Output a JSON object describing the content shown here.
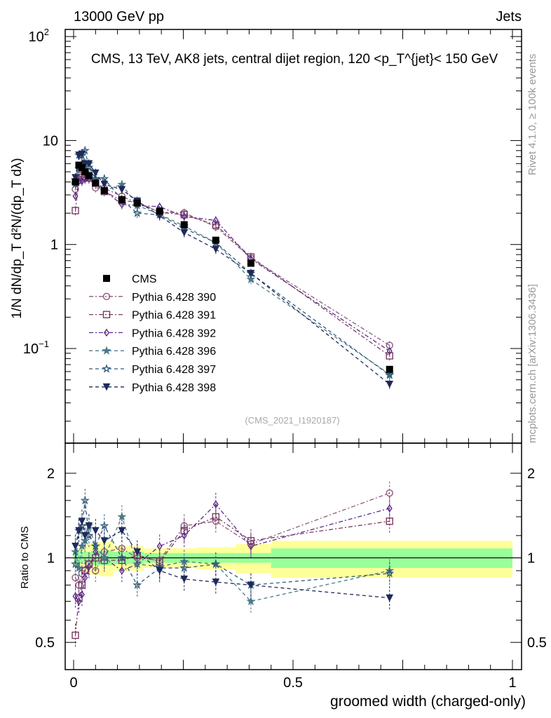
{
  "header": {
    "left": "13000 GeV pp",
    "right": "Jets"
  },
  "side": {
    "rivet": "Rivet 4.1.0, ≥ 100k events",
    "mcplots": "mcplots.cern.ch [arXiv:1306.3436]"
  },
  "watermark": "(CMS_2021_I1920187)",
  "chart_data": {
    "type": "line",
    "title": "CMS, 13 TeV, AK8 jets, central dijet region, 120 <p_T^{jet}< 150 GeV",
    "xlabel": "groomed width (charged-only)",
    "ylabel": "1/N dN/dp_T  d²N/(dp_T dλ)",
    "ratio_ylabel": "Ratio to CMS",
    "xlim": [
      0,
      1
    ],
    "ylim": [
      0.0123,
      117
    ],
    "yscale": "log",
    "ratio_ylim": [
      0.4,
      2.56
    ],
    "x_ticks": [
      "0",
      "0.5",
      "1"
    ],
    "y_ticks": [
      {
        "v": 100,
        "base": "10",
        "exp": "2"
      },
      {
        "v": 10,
        "base": "10",
        "exp": ""
      },
      {
        "v": 1,
        "base": "1",
        "exp": ""
      },
      {
        "v": 0.1,
        "base": "10",
        "exp": "−1"
      }
    ],
    "ratio_ticks": [
      "2",
      "1",
      "0.5"
    ],
    "x": [
      0.004,
      0.012,
      0.019,
      0.026,
      0.035,
      0.05,
      0.07,
      0.11,
      0.145,
      0.196,
      0.252,
      0.324,
      0.404,
      0.72
    ],
    "reference": {
      "name": "CMS",
      "values": [
        4.0,
        5.8,
        5.5,
        5.0,
        4.6,
        3.9,
        3.3,
        2.7,
        2.5,
        2.1,
        1.55,
        1.1,
        0.66,
        0.063
      ],
      "rel_error": 0.05
    },
    "bands": {
      "edges": [
        0,
        0.008,
        0.016,
        0.022,
        0.03,
        0.04,
        0.06,
        0.09,
        0.13,
        0.16,
        0.23,
        0.28,
        0.37,
        0.45,
        1.0
      ],
      "inner": [
        0.05,
        0.05,
        0.05,
        0.05,
        0.05,
        0.06,
        0.06,
        0.05,
        0.05,
        0.04,
        0.04,
        0.04,
        0.04,
        0.08
      ],
      "outer": [
        0.07,
        0.08,
        0.09,
        0.1,
        0.12,
        0.13,
        0.14,
        0.1,
        0.1,
        0.08,
        0.08,
        0.09,
        0.12,
        0.15
      ]
    },
    "series": [
      {
        "name": "Pythia 6.428 390",
        "color": "#8b5a7f",
        "marker": "circle",
        "dash": "6,3,2,3",
        "ratio": [
          0.85,
          0.8,
          0.88,
          0.9,
          0.95,
          0.9,
          1.05,
          1.08,
          1.0,
          0.98,
          1.3,
          1.35,
          1.12,
          1.7
        ]
      },
      {
        "name": "Pythia 6.428 391",
        "color": "#7a3a5e",
        "marker": "square",
        "dash": "6,3,2,3",
        "ratio": [
          0.53,
          0.72,
          0.8,
          0.9,
          0.95,
          1.0,
          0.98,
          0.98,
          1.02,
          0.97,
          1.25,
          1.4,
          1.15,
          1.35
        ]
      },
      {
        "name": "Pythia 6.428 392",
        "color": "#5a2a8a",
        "marker": "diamond",
        "dash": "6,3,2,3",
        "ratio": [
          0.73,
          0.7,
          0.74,
          0.85,
          0.93,
          1.05,
          1.0,
          0.9,
          0.95,
          1.1,
          1.2,
          1.55,
          1.1,
          1.5
        ]
      },
      {
        "name": "Pythia 6.428 396",
        "color": "#4a7a8a",
        "marker": "star-filled",
        "dash": "5,4",
        "ratio": [
          1.05,
          0.92,
          1.1,
          1.15,
          1.3,
          1.1,
          1.0,
          1.4,
          0.95,
          0.93,
          0.97,
          0.95,
          0.7,
          0.9
        ]
      },
      {
        "name": "Pythia 6.428 397",
        "color": "#2f5a78",
        "marker": "star-open",
        "dash": "5,4",
        "ratio": [
          0.95,
          1.25,
          1.3,
          1.6,
          1.2,
          1.1,
          1.3,
          1.0,
          0.8,
          0.92,
          0.92,
          0.95,
          0.8,
          0.88
        ]
      },
      {
        "name": "Pythia 6.428 398",
        "color": "#1f2a5a",
        "marker": "triangle-down",
        "dash": "5,4",
        "ratio": [
          1.1,
          1.25,
          1.35,
          1.2,
          1.3,
          1.25,
          1.15,
          1.25,
          1.05,
          0.9,
          0.84,
          0.82,
          0.8,
          0.72
        ]
      }
    ],
    "mc_rel_error": 0.1,
    "legend_position": "center-left",
    "colors": {
      "band_inner": "#99ff99",
      "band_outer": "#ffff99"
    }
  }
}
